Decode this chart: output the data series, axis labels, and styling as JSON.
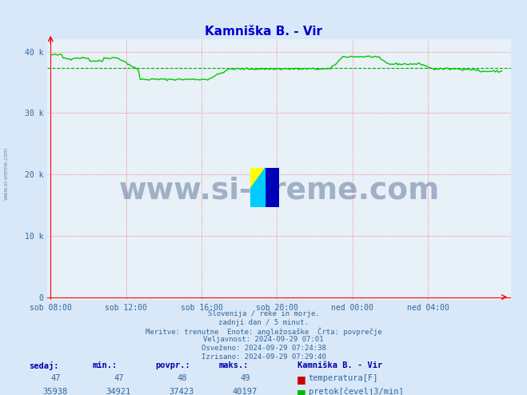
{
  "title": "Kamniška B. - Vir",
  "title_color": "#0000cc",
  "bg_color": "#d8e8f8",
  "plot_bg_color": "#e8f0f8",
  "ylabel_color": "#336699",
  "xlabel_color": "#336699",
  "ylim": [
    0,
    42000
  ],
  "yticks": [
    0,
    10000,
    20000,
    30000,
    40000
  ],
  "ytick_labels": [
    "0",
    "10 k",
    "20 k",
    "30 k",
    "40 k"
  ],
  "xtick_labels": [
    "sob 08:00",
    "sob 12:00",
    "sob 16:00",
    "sob 20:00",
    "ned 00:00",
    "ned 04:00"
  ],
  "xtick_pos": [
    0,
    48,
    96,
    144,
    192,
    240
  ],
  "avg_line_value": 37423,
  "avg_line_color": "#00aa00",
  "line_color": "#00cc00",
  "watermark_text": "www.si-vreme.com",
  "watermark_color": "#1a3a6a",
  "footer_lines": [
    "Slovenija / reke in morje.",
    "zadnji dan / 5 minut.",
    "Meritve: trenutne  Enote: angležosaške  Črta: povprečje",
    "Veljavnost: 2024-09-29 07:01",
    "Osveženo: 2024-09-29 07:24:38",
    "Izrisano: 2024-09-29 07:29:40"
  ],
  "footer_color": "#336699",
  "table_headers": [
    "sedaj:",
    "min.:",
    "povpr.:",
    "maks.:"
  ],
  "table_header_color": "#0000aa",
  "station_name": "Kamniška B. - Vir",
  "row1_values": [
    "47",
    "47",
    "48",
    "49"
  ],
  "row1_label": "temperatura[F]",
  "row1_color": "#cc0000",
  "row2_values": [
    "35938",
    "34921",
    "37423",
    "40197"
  ],
  "row2_label": "pretok[čevelj3/min]",
  "row2_color": "#00bb00",
  "n_points": 288
}
